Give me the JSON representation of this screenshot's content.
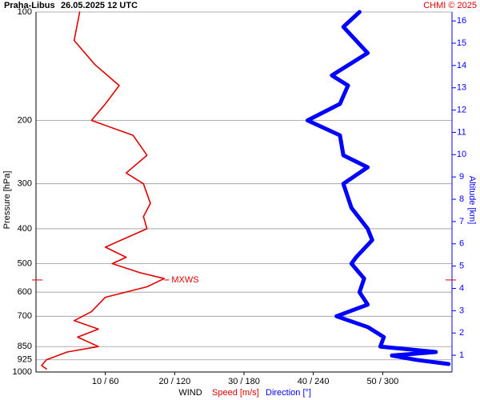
{
  "chart_data": {
    "type": "line",
    "title": "Praha-Libus",
    "subtitle": "26.05.2025 12 UTC",
    "credit": "CHMI © 2025",
    "y_label": "Pressure [hPa]",
    "y2_label": "Altitude [km]",
    "x_label": "WIND",
    "series": [
      {
        "name": "Speed [m/s]",
        "color": "#e00000",
        "pressure": [
          100,
          120,
          140,
          160,
          180,
          200,
          220,
          250,
          280,
          300,
          340,
          370,
          400,
          450,
          480,
          500,
          530,
          550,
          580,
          620,
          680,
          720,
          760,
          800,
          850,
          880,
          925,
          960,
          980
        ],
        "values": [
          6.3,
          5.5,
          8.5,
          12,
          10,
          8,
          14,
          16,
          13,
          15.5,
          16.5,
          15.5,
          16,
          10,
          13,
          11,
          15,
          18.5,
          16,
          10,
          8,
          5.5,
          9,
          6,
          9,
          4.5,
          1.5,
          0.8,
          1.5
        ]
      },
      {
        "name": "Direction [°]",
        "color": "#0000ff",
        "axis": "x2",
        "pressure": [
          100,
          110,
          130,
          150,
          160,
          180,
          200,
          220,
          250,
          270,
          300,
          350,
          400,
          430,
          480,
          500,
          550,
          600,
          650,
          700,
          750,
          800,
          850,
          880,
          900,
          925,
          950
        ],
        "values": [
          280,
          266,
          287,
          256,
          270,
          263,
          235,
          263,
          266,
          287,
          266,
          273,
          287,
          291,
          277,
          273,
          284,
          280,
          287,
          260,
          287,
          301,
          298,
          346,
          308,
          329,
          357
        ]
      }
    ],
    "annotation": {
      "label": "MXWS",
      "pressure": 555,
      "speed": 18.5
    },
    "xlim": [
      0,
      60
    ],
    "x2lim": [
      0,
      360
    ],
    "xticks": [
      {
        "value": 10,
        "label": "10 / 60"
      },
      {
        "value": 20,
        "label": "20 / 120"
      },
      {
        "value": 30,
        "label": "30 / 180"
      },
      {
        "value": 40,
        "label": "40 / 240"
      },
      {
        "value": 50,
        "label": "50 / 300"
      }
    ],
    "ylim": [
      1000,
      100
    ],
    "y_scale": "log",
    "yticks": [
      100,
      200,
      300,
      400,
      500,
      600,
      700,
      850,
      925,
      1000
    ],
    "y2lim": [
      0.25,
      16.4
    ],
    "y2ticks": [
      1,
      2,
      3,
      4,
      5,
      6,
      7,
      8,
      9,
      10,
      11,
      12,
      13,
      14,
      15,
      16
    ],
    "grid": true
  }
}
